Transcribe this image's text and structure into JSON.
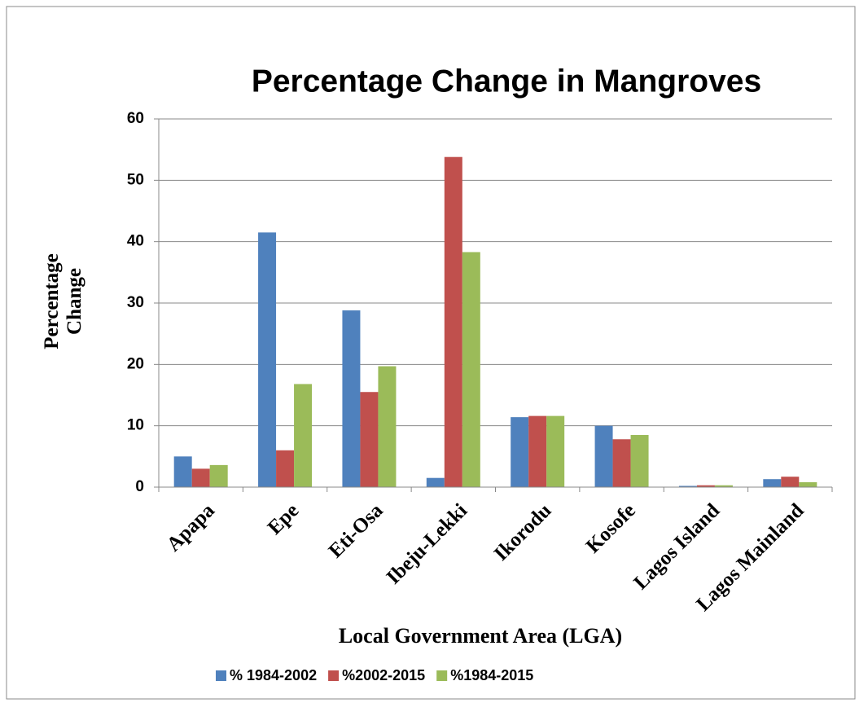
{
  "chart_data": {
    "type": "bar",
    "title": "Percentage Change in Mangroves",
    "x_label": "Local Government Area (LGA)",
    "y_label": "Percentage Change",
    "categories": [
      "Apapa",
      "Epe",
      "Eti-Osa",
      "Ibeju-Lekki",
      "Ikorodu",
      "Kosofe",
      "Lagos Island",
      "Lagos Mainland"
    ],
    "series": [
      {
        "name": "% 1984-2002",
        "color": "#4f81bd",
        "values": [
          5.0,
          41.5,
          28.8,
          1.5,
          11.4,
          10.0,
          0.2,
          1.3
        ]
      },
      {
        "name": "%2002-2015",
        "color": "#c0504d",
        "values": [
          3.0,
          6.0,
          15.5,
          53.8,
          11.6,
          7.8,
          0.3,
          1.7
        ]
      },
      {
        "name": "%1984-2015",
        "color": "#9bbb59",
        "values": [
          3.6,
          16.8,
          19.7,
          38.3,
          11.6,
          8.5,
          0.3,
          0.8
        ]
      }
    ],
    "ylim": [
      0,
      60
    ],
    "yticks": [
      0,
      10,
      20,
      30,
      40,
      50,
      60
    ],
    "grid": true
  }
}
